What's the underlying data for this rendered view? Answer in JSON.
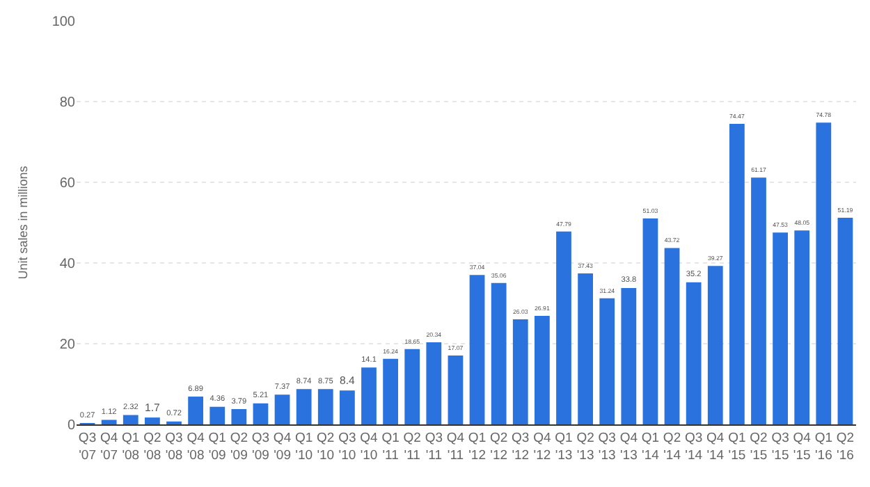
{
  "chart_data": {
    "type": "bar",
    "ylabel": "Unit sales in millions",
    "categories": [
      "Q3\n'07",
      "Q4\n'07",
      "Q1\n'08",
      "Q2\n'08",
      "Q3\n'08",
      "Q4\n'08",
      "Q1\n'09",
      "Q2\n'09",
      "Q3\n'09",
      "Q4\n'09",
      "Q1\n'10",
      "Q2\n'10",
      "Q3\n'10",
      "Q4\n'10",
      "Q1\n'11",
      "Q2\n'11",
      "Q3\n'11",
      "Q4\n'11",
      "Q1\n'12",
      "Q2\n'12",
      "Q3\n'12",
      "Q4\n'12",
      "Q1\n'13",
      "Q2\n'13",
      "Q3\n'13",
      "Q4\n'13",
      "Q1\n'14",
      "Q2\n'14",
      "Q3\n'14",
      "Q4\n'14",
      "Q1\n'15",
      "Q2\n'15",
      "Q3\n'15",
      "Q4\n'15",
      "Q1\n'16",
      "Q2\n'16"
    ],
    "values": [
      0.27,
      1.12,
      2.32,
      1.7,
      0.72,
      6.89,
      4.36,
      3.79,
      5.21,
      7.37,
      8.74,
      8.75,
      8.4,
      14.1,
      16.24,
      18.65,
      20.34,
      17.07,
      37.04,
      35.06,
      26.03,
      26.91,
      47.79,
      37.43,
      31.24,
      33.8,
      51.03,
      43.72,
      35.2,
      39.27,
      74.47,
      61.17,
      47.53,
      48.05,
      74.78,
      51.19
    ],
    "color": "#2a72de",
    "ylim": [
      0,
      100
    ],
    "yticks": [
      0,
      20,
      40,
      60,
      80,
      100
    ],
    "grid": "y",
    "data_labels": true
  }
}
